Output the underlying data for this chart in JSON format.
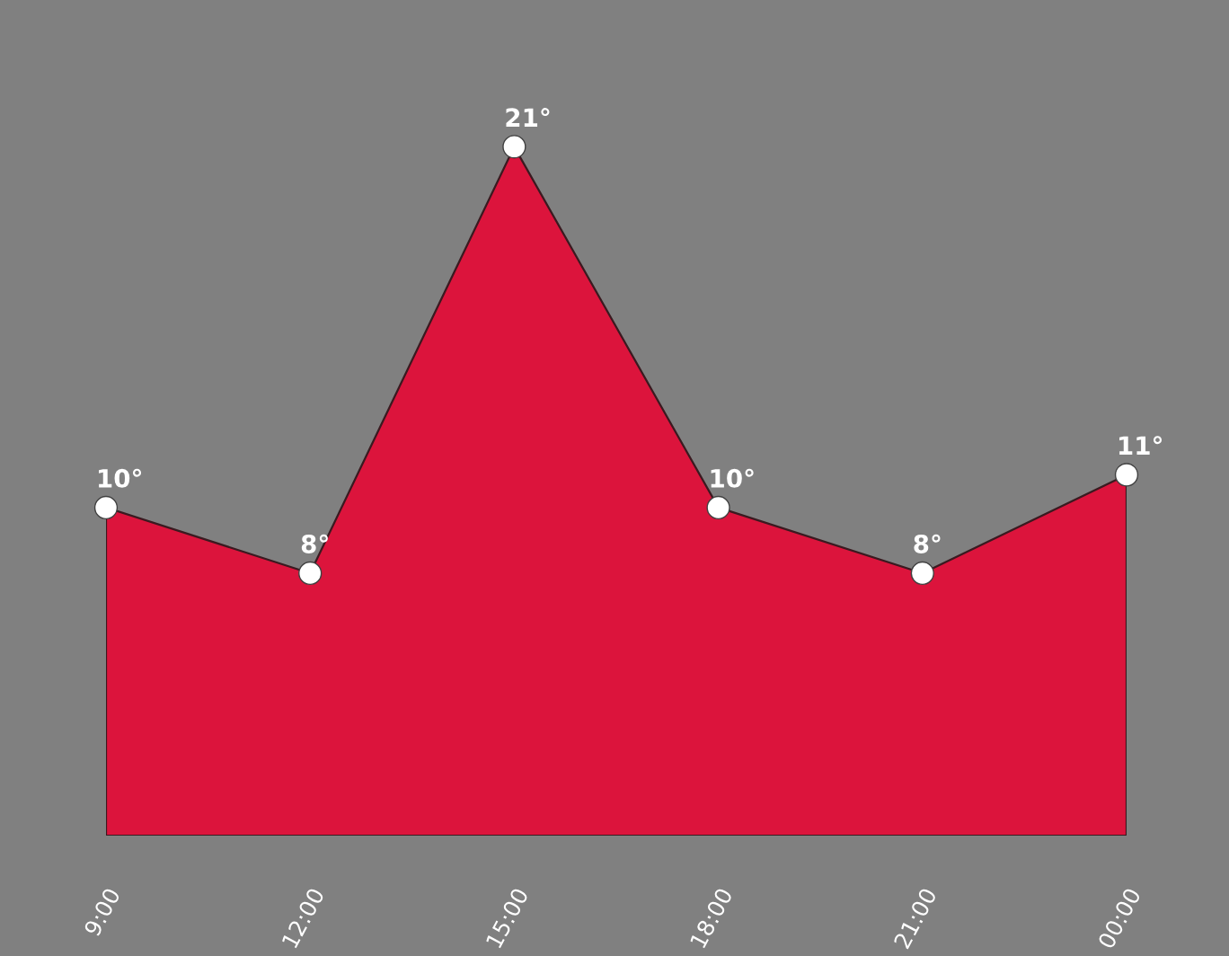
{
  "chart_data": {
    "type": "area",
    "categories": [
      "9:00",
      "12:00",
      "15:00",
      "18:00",
      "21:00",
      "00:00"
    ],
    "series": [
      {
        "color": "#dc143c",
        "values": [
          10,
          8,
          21,
          10,
          8,
          11
        ],
        "value_labels": [
          "10°",
          "8°",
          "21°",
          "10°",
          "8°",
          "11°"
        ]
      }
    ],
    "tick_labels": "x",
    "marker": "circle"
  }
}
